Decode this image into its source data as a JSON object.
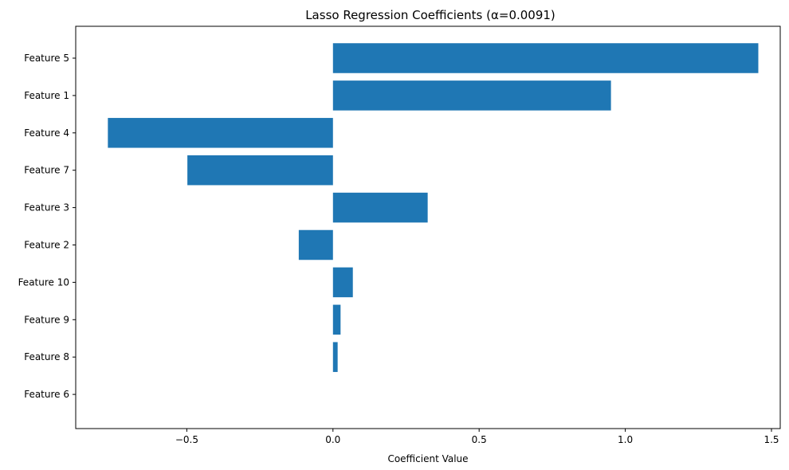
{
  "chart_data": {
    "type": "bar",
    "orientation": "horizontal",
    "title": "Lasso Regression Coefficients (α=0.0091)",
    "xlabel": "Coefficient Value",
    "ylabel": "",
    "categories": [
      "Feature 5",
      "Feature 1",
      "Feature 4",
      "Feature 7",
      "Feature 3",
      "Feature 2",
      "Feature 10",
      "Feature 9",
      "Feature 8",
      "Feature 6"
    ],
    "values": [
      1.455,
      0.951,
      -0.77,
      -0.498,
      0.324,
      -0.117,
      0.068,
      0.026,
      0.016,
      0.0
    ],
    "xlim": [
      -0.88,
      1.53
    ],
    "xticks": [
      -0.5,
      0.0,
      0.5,
      1.0,
      1.5
    ],
    "xtick_labels": [
      "−0.5",
      "0.0",
      "0.5",
      "1.0",
      "1.5"
    ],
    "grid": false,
    "bar_color": "#1f77b4"
  }
}
